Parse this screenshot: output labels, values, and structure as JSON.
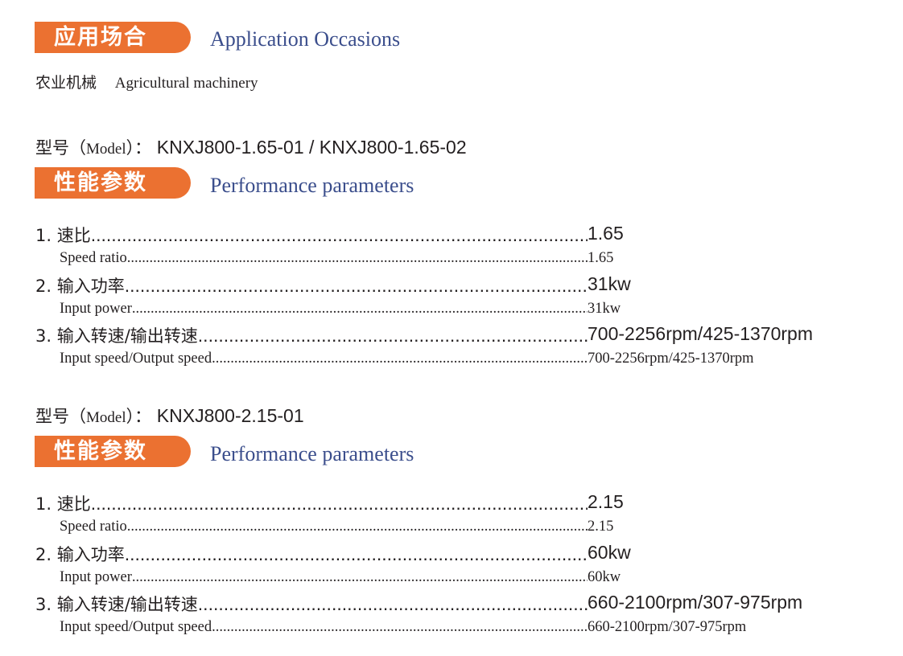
{
  "application": {
    "heading_cn": "应用场合",
    "heading_en": "Application Occasions",
    "item_cn": "农业机械",
    "item_en": "Agricultural machinery"
  },
  "models": [
    {
      "model_label_cn": "型号（",
      "model_label_en": "Model",
      "model_label_end": "）：",
      "model_value": "KNXJ800-1.65-01 / KNXJ800-1.65-02",
      "heading_cn": "性能参数",
      "heading_en": "Performance parameters",
      "params": [
        {
          "label_cn": "1. 速比",
          "label_en": "Speed ratio",
          "value_cn": "1.65",
          "value_en": "1.65"
        },
        {
          "label_cn": "2. 输入功率",
          "label_en": "Input power",
          "value_cn": "31kw",
          "value_en": "31kw"
        },
        {
          "label_cn": "3. 输入转速/输出转速",
          "label_en": "Input speed/Output speed",
          "value_cn": "700-2256rpm/425-1370rpm",
          "value_en": "700-2256rpm/425-1370rpm"
        }
      ]
    },
    {
      "model_label_cn": "型号（",
      "model_label_en": "Model",
      "model_label_end": "）：",
      "model_value": "KNXJ800-2.15-01",
      "heading_cn": "性能参数",
      "heading_en": "Performance parameters",
      "params": [
        {
          "label_cn": "1. 速比",
          "label_en": "Speed ratio",
          "value_cn": "2.15",
          "value_en": "2.15"
        },
        {
          "label_cn": "2. 输入功率",
          "label_en": "Input power",
          "value_cn": "60kw",
          "value_en": "60kw"
        },
        {
          "label_cn": "3. 输入转速/输出转速",
          "label_en": "Input speed/Output speed",
          "value_cn": "660-2100rpm/307-975rpm",
          "value_en": "660-2100rpm/307-975rpm"
        }
      ]
    }
  ],
  "colors": {
    "accent": "#eb7131",
    "heading_en": "#3b4e8c",
    "text": "#231f20"
  }
}
